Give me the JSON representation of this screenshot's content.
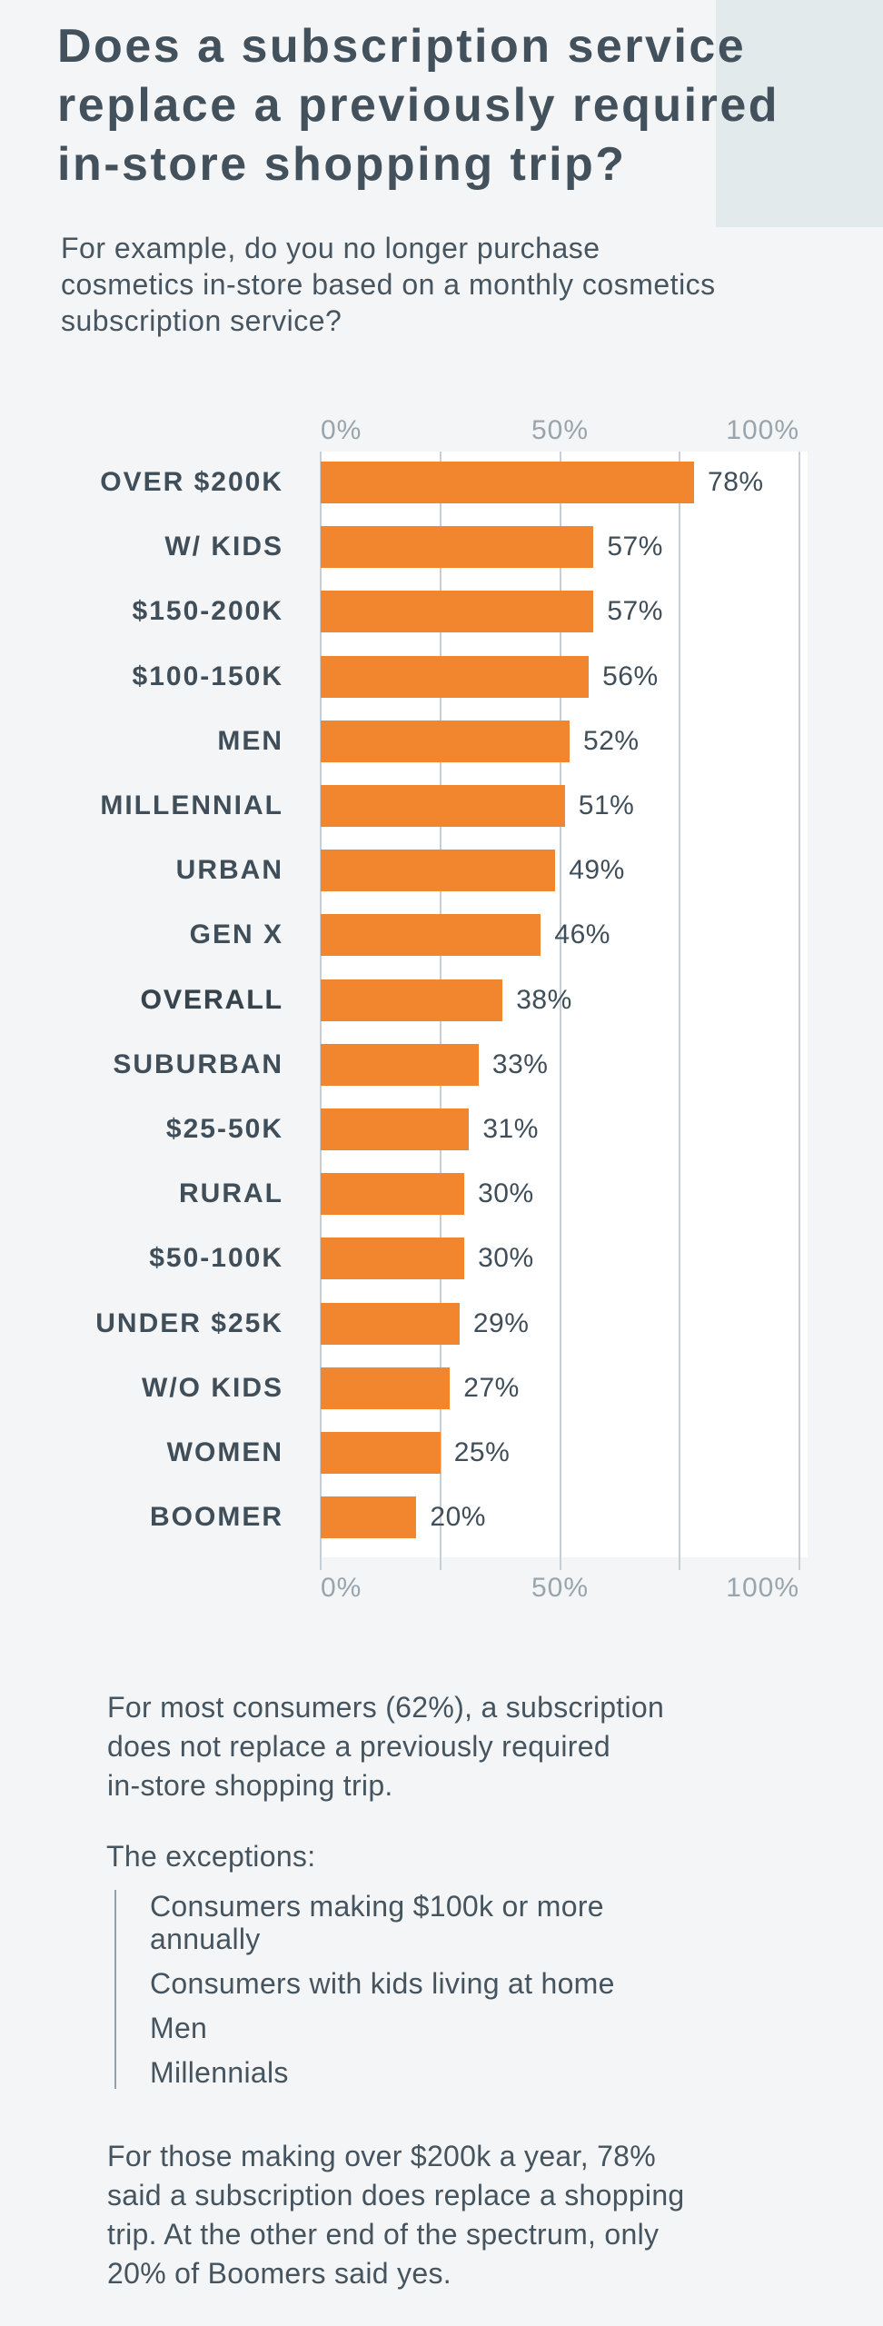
{
  "header": {
    "title": "Does a subscription service\nreplace a previously required\nin-store shopping trip?",
    "subtitle": "For example, do you no longer purchase\ncosmetics in-store based on a monthly cosmetics\nsubscription service?"
  },
  "chart_data": {
    "type": "bar",
    "orientation": "horizontal",
    "title": "Does a subscription service replace a previously required in-store shopping trip?",
    "categories": [
      "OVER $200K",
      "W/ KIDS",
      "$150-200K",
      "$100-150K",
      "MEN",
      "MILLENNIAL",
      "URBAN",
      "GEN X",
      "OVERALL",
      "SUBURBAN",
      "$25-50K",
      "RURAL",
      "$50-100K",
      "UNDER $25K",
      "W/O KIDS",
      "WOMEN",
      "BOOMER"
    ],
    "values": [
      78,
      57,
      57,
      56,
      52,
      51,
      49,
      46,
      38,
      33,
      31,
      30,
      30,
      29,
      27,
      25,
      20
    ],
    "value_labels": [
      "78%",
      "57%",
      "57%",
      "56%",
      "52%",
      "51%",
      "49%",
      "46%",
      "38%",
      "33%",
      "31%",
      "30%",
      "30%",
      "29%",
      "27%",
      "25%",
      "20%"
    ],
    "emphasized_category": "OVERALL",
    "xlabel": "",
    "ylabel": "",
    "xlim": [
      0,
      100
    ],
    "x_ticks": [
      {
        "label": "0%",
        "value": 0
      },
      {
        "label": "50%",
        "value": 50
      },
      {
        "label": "100%",
        "value": 100
      }
    ],
    "gridline_values": [
      0,
      25,
      50,
      75,
      100
    ],
    "grid": true,
    "tick_label_position": "top and bottom",
    "legend": "none"
  },
  "notes": {
    "summary": "For most consumers (62%), a subscription\ndoes not replace a previously required\nin-store shopping trip.",
    "exceptions_heading": "The exceptions:",
    "exceptions": [
      "Consumers making $100k or more\nannually",
      "Consumers with kids living at home",
      "Men",
      "Millennials"
    ],
    "detail": "For those making over $200k a year, 78%\nsaid a subscription does replace a shopping\ntrip. At the other end of the spectrum, only\n20% of Boomers said yes."
  },
  "colors": {
    "bar": "#f2862e",
    "page_background": "#f4f5f6",
    "plot_background": "#ffffff",
    "corner_rectangle": "#e3eaec",
    "text": "#43525d",
    "axis_label": "#99a5ad",
    "gridline": "#c7cfd4"
  }
}
